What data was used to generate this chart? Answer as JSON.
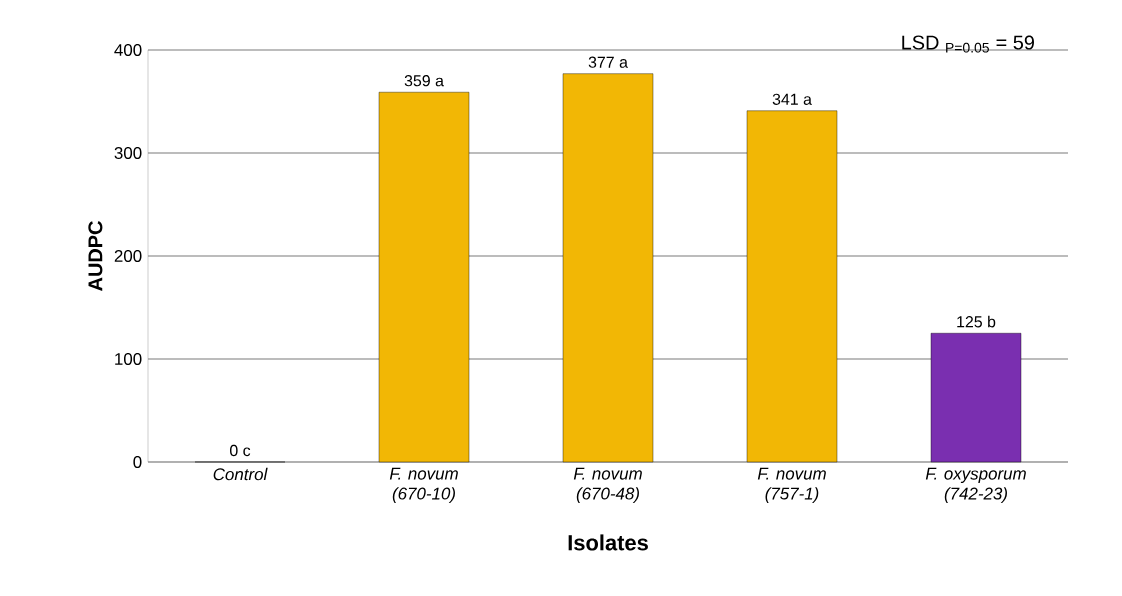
{
  "chart_data": {
    "type": "bar",
    "xlabel": "Isolates",
    "ylabel": "AUDPC",
    "categories": [
      "Control",
      "F. novum (670-10)",
      "F. novum (670-48)",
      "F. novum (757-1)",
      "F. oxysporum (742-23)"
    ],
    "values": [
      0,
      359,
      377,
      341,
      125
    ],
    "colors": [
      "#1e8ec4",
      "#f2b705",
      "#f2b705",
      "#f2b705",
      "#7a2fb0"
    ],
    "value_labels": [
      "0 c",
      "359 a",
      "377 a",
      "341 a",
      "125 b"
    ],
    "ylim": [
      0,
      400
    ],
    "yticks": [
      0,
      100,
      200,
      300,
      400
    ],
    "grid": "y",
    "annotations": [
      "LSD $_{P=0.05}$ = 59"
    ]
  }
}
